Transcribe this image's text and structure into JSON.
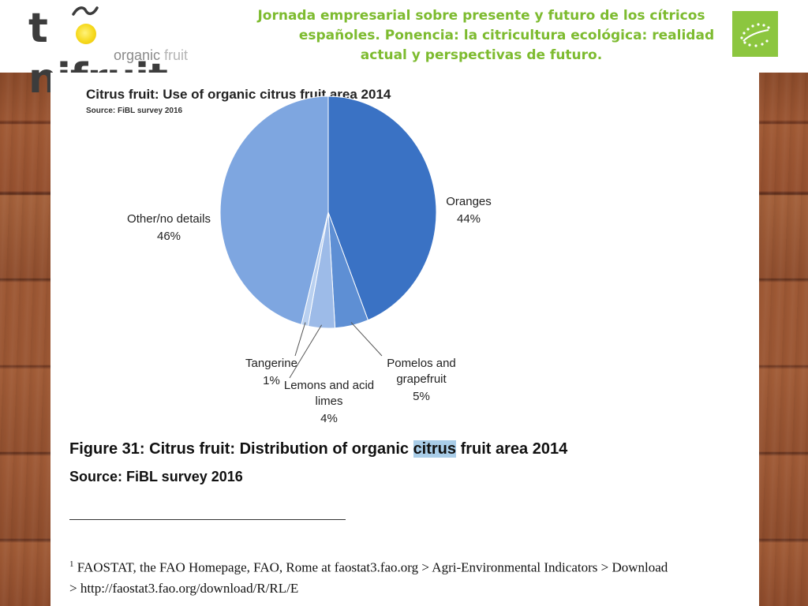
{
  "header": {
    "logo_main": "tonifruit",
    "logo_sub_1": "organic ",
    "logo_sub_2": "fruit",
    "title_line_1": "Jornada empresarial sobre presente y futuro de los cítricos",
    "title_line_2": "españoles. Ponencia: la citricultura ecológica: realidad",
    "title_line_3": "actual y perspectivas de futuro.",
    "title_color": "#7dbb2f",
    "eu_flag_color": "#8cc63f"
  },
  "chart_data": {
    "type": "pie",
    "title": "Citrus fruit: Use of organic citrus fruit area 2014",
    "subtitle": "Source: FiBL survey 2016",
    "slices": [
      {
        "name": "Oranges",
        "value": 44,
        "label": "44%",
        "color": "#3a72c4"
      },
      {
        "name": "Pomelos and grapefruit",
        "value": 5,
        "label": "5%",
        "color": "#5e8fd4"
      },
      {
        "name": "Lemons and acid limes",
        "value": 4,
        "label": "4%",
        "color": "#9dbbe8"
      },
      {
        "name": "Tangerine",
        "value": 1,
        "label": "1%",
        "color": "#b9d0f0"
      },
      {
        "name": "Other/no details",
        "value": 46,
        "label": "46%",
        "color": "#7ea6e0"
      }
    ]
  },
  "figure": {
    "caption_prefix": "Figure 31: Citrus fruit: Distribution of organic ",
    "caption_highlight": "citrus",
    "caption_suffix": " fruit area 2014",
    "source": "Source: FiBL survey 2016"
  },
  "footnote": {
    "marker": "1",
    "line_1": " FAOSTAT, the FAO Homepage, FAO, Rome at faostat3.fao.org > Agri-Environmental Indicators > Download",
    "line_2": "> http://faostat3.fao.org/download/R/RL/E"
  }
}
